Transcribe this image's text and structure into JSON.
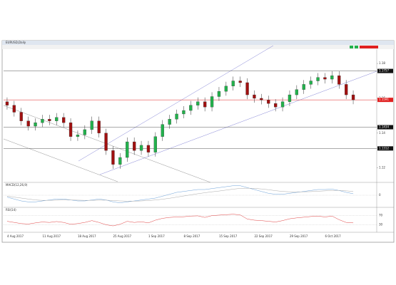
{
  "chart_data": {
    "type": "candlestick",
    "title": "EURUSD,Daily",
    "categories": [
      "4 Aug 2017",
      null,
      null,
      null,
      null,
      "11 Aug 2017",
      null,
      null,
      null,
      null,
      "18 Aug 2017",
      null,
      null,
      null,
      null,
      "25 Aug 2017",
      null,
      null,
      null,
      null,
      "1 Sep 2017",
      null,
      null,
      null,
      null,
      "8 Sep 2017",
      null,
      null,
      null,
      null,
      "15 Sep 2017",
      null,
      null,
      null,
      null,
      "22 Sep 2017",
      null,
      null,
      null,
      null,
      "29 Sep 2017",
      null,
      null,
      null,
      null,
      "6 Oct 2017",
      null,
      null,
      null,
      null
    ],
    "open": [
      1.158,
      1.156,
      1.152,
      1.147,
      1.144,
      1.146,
      1.148,
      1.147,
      1.149,
      1.146,
      1.138,
      1.139,
      1.142,
      1.147,
      1.14,
      1.13,
      1.122,
      1.126,
      1.135,
      1.13,
      1.133,
      1.129,
      1.138,
      1.145,
      1.148,
      1.151,
      1.153,
      1.156,
      1.158,
      1.155,
      1.161,
      1.164,
      1.167,
      1.17,
      1.169,
      1.162,
      1.16,
      1.159,
      1.157,
      1.155,
      1.158,
      1.162,
      1.165,
      1.168,
      1.17,
      1.172,
      1.171,
      1.173,
      1.168,
      1.162
    ],
    "high": [
      1.1605,
      1.1585,
      1.1545,
      1.1495,
      1.1485,
      1.1505,
      1.1505,
      1.1515,
      1.1515,
      1.1485,
      1.1415,
      1.1445,
      1.1495,
      1.1495,
      1.1425,
      1.1325,
      1.1285,
      1.1375,
      1.1375,
      1.1355,
      1.1355,
      1.1405,
      1.1475,
      1.1505,
      1.1535,
      1.1555,
      1.1585,
      1.1605,
      1.1605,
      1.1635,
      1.1665,
      1.1695,
      1.1725,
      1.1725,
      1.1715,
      1.1645,
      1.1625,
      1.1615,
      1.1595,
      1.1605,
      1.1645,
      1.1675,
      1.1705,
      1.1725,
      1.1745,
      1.1745,
      1.1755,
      1.1755,
      1.1705,
      1.1645
    ],
    "low": [
      1.1535,
      1.1495,
      1.1445,
      1.1415,
      1.1415,
      1.1435,
      1.1445,
      1.1445,
      1.1435,
      1.1355,
      1.1355,
      1.1365,
      1.1395,
      1.1375,
      1.1275,
      1.1195,
      1.1195,
      1.1235,
      1.1275,
      1.1275,
      1.1265,
      1.1265,
      1.1355,
      1.1425,
      1.1455,
      1.1485,
      1.1505,
      1.1535,
      1.1525,
      1.1525,
      1.1585,
      1.1615,
      1.1645,
      1.1665,
      1.1595,
      1.1575,
      1.1565,
      1.1545,
      1.1525,
      1.1525,
      1.1555,
      1.1595,
      1.1625,
      1.1655,
      1.1675,
      1.1685,
      1.1685,
      1.1655,
      1.1595,
      1.1566
    ],
    "close": [
      1.156,
      1.152,
      1.147,
      1.144,
      1.146,
      1.148,
      1.147,
      1.149,
      1.146,
      1.138,
      1.139,
      1.142,
      1.147,
      1.14,
      1.13,
      1.122,
      1.126,
      1.135,
      1.13,
      1.133,
      1.129,
      1.138,
      1.145,
      1.148,
      1.151,
      1.153,
      1.156,
      1.158,
      1.155,
      1.161,
      1.164,
      1.167,
      1.17,
      1.169,
      1.162,
      1.16,
      1.159,
      1.157,
      1.155,
      1.158,
      1.162,
      1.165,
      1.168,
      1.17,
      1.172,
      1.171,
      1.173,
      1.168,
      1.162,
      1.1591
    ],
    "up_color": "#22b14c",
    "down_color": "#a01010",
    "ylim": [
      1.1125,
      1.187
    ],
    "yticks": [
      1.12,
      1.14,
      1.16,
      1.18
    ],
    "levels": [
      1.1757,
      1.1591,
      1.1434,
      1.1312
    ],
    "level_colors": [
      "#555555",
      "#e02020",
      "#555555",
      "#555555"
    ],
    "indicators": [
      {
        "title": "MACD(12,26,9)",
        "ylim": [
          -0.006,
          0.006
        ],
        "yticks": [
          0
        ],
        "series": [
          {
            "name": "MACD",
            "color": "#6aa0d8",
            "values": [
              -0.001,
              -0.002,
              -0.003,
              -0.0035,
              -0.0035,
              -0.003,
              -0.0025,
              -0.002,
              -0.002,
              -0.0025,
              -0.003,
              -0.003,
              -0.0025,
              -0.002,
              -0.0025,
              -0.0035,
              -0.004,
              -0.0035,
              -0.003,
              -0.0025,
              -0.002,
              -0.0015,
              -0.0005,
              0.0005,
              0.0015,
              0.002,
              0.0025,
              0.003,
              0.003,
              0.0035,
              0.004,
              0.0045,
              0.005,
              0.005,
              0.004,
              0.003,
              0.002,
              0.001,
              0.0005,
              0.0005,
              0.001,
              0.0015,
              0.002,
              0.0025,
              0.003,
              0.003,
              0.0032,
              0.0025,
              0.0015,
              0.0008
            ]
          },
          {
            "name": "Signal",
            "color": "#aaaaaa",
            "values": [
              -0.0005,
              -0.001,
              -0.0015,
              -0.002,
              -0.0025,
              -0.0027,
              -0.0027,
              -0.0026,
              -0.0025,
              -0.0025,
              -0.0026,
              -0.0027,
              -0.0027,
              -0.0026,
              -0.0026,
              -0.0028,
              -0.003,
              -0.0031,
              -0.0031,
              -0.003,
              -0.0028,
              -0.0025,
              -0.0021,
              -0.0016,
              -0.001,
              -0.0004,
              0.0002,
              0.0008,
              0.0013,
              0.0018,
              0.0022,
              0.0027,
              0.0032,
              0.0036,
              0.0037,
              0.0036,
              0.0033,
              0.0029,
              0.0024,
              0.002,
              0.0018,
              0.0017,
              0.0018,
              0.0019,
              0.0021,
              0.0023,
              0.0025,
              0.0025,
              0.0023,
              0.002
            ]
          }
        ]
      },
      {
        "title": "RSI(14)",
        "ylim": [
          0,
          100
        ],
        "yticks": [
          30,
          70
        ],
        "series": [
          {
            "name": "RSI",
            "color": "#e04040",
            "values": [
              45,
              40,
              35,
              33,
              38,
              42,
              40,
              44,
              40,
              32,
              35,
              40,
              48,
              40,
              30,
              25,
              32,
              45,
              40,
              43,
              38,
              50,
              58,
              62,
              64,
              65,
              68,
              69,
              62,
              70,
              72,
              74,
              76,
              73,
              55,
              50,
              48,
              45,
              42,
              48,
              56,
              60,
              63,
              66,
              68,
              64,
              68,
              52,
              40,
              38
            ]
          }
        ]
      }
    ]
  }
}
